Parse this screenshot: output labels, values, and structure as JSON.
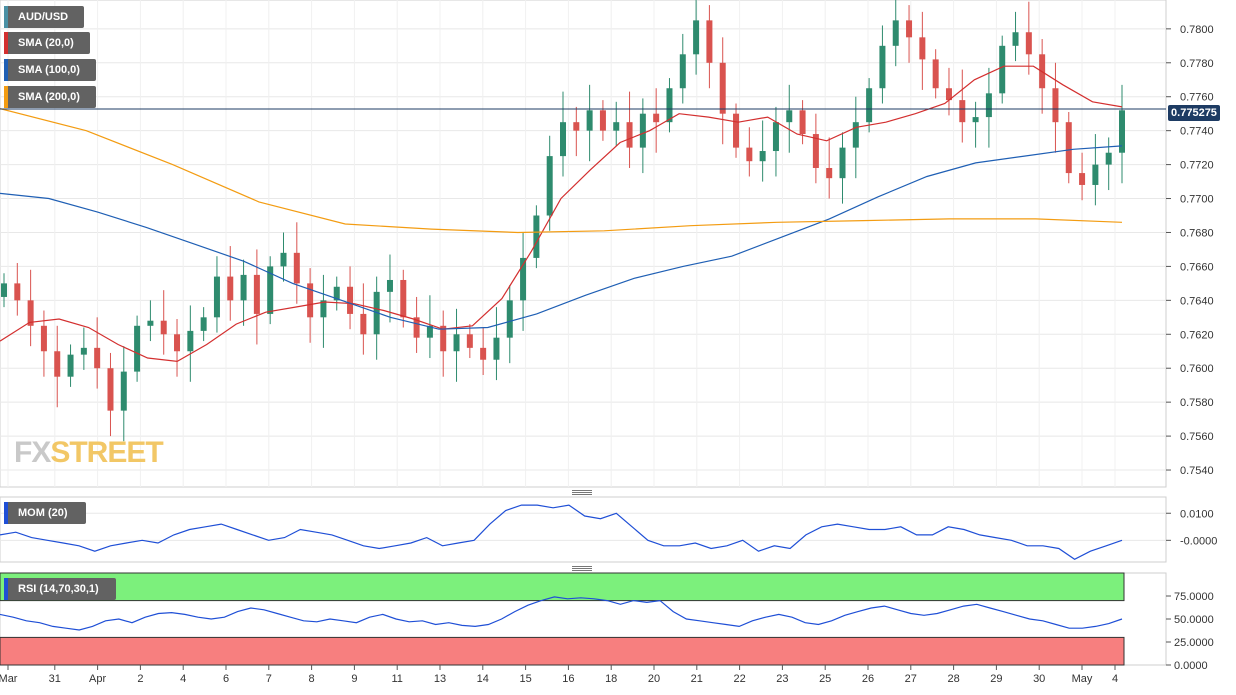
{
  "symbol": "AUD/USD",
  "legend": {
    "sma20": {
      "label": "SMA (20,0)",
      "color": "#d32f2f"
    },
    "sma100": {
      "label": "SMA (100,0)",
      "color": "#1f5fb4"
    },
    "sma200": {
      "label": "SMA (200,0)",
      "color": "#f39c12"
    }
  },
  "watermark": {
    "part1": "FX",
    "part2": "STREET"
  },
  "current_price_label": "0.775275",
  "mom_label": "MOM (20)",
  "rsi_label": "RSI (14,70,30,1)",
  "colors": {
    "up": "#2e8b6e",
    "down": "#d9534f",
    "grid": "#e8e8e8",
    "rsi_overbought": "#7cf07c",
    "rsi_oversold": "#f77f7f",
    "indicator_line": "#1f4fd6"
  },
  "chart_data": [
    {
      "type": "candlestick",
      "title": "AUD/USD",
      "ylim": [
        0.753,
        0.7817
      ],
      "y_ticks": [
        0.754,
        0.756,
        0.758,
        0.76,
        0.762,
        0.764,
        0.766,
        0.768,
        0.77,
        0.772,
        0.774,
        0.776,
        0.778,
        0.78
      ],
      "y_tick_labels": [
        "0.7540",
        "0.7560",
        "0.7580",
        "0.7600",
        "0.7620",
        "0.7640",
        "0.7660",
        "0.7680",
        "0.7700",
        "0.7720",
        "0.7740",
        "0.7760",
        "0.7780",
        "0.7800"
      ],
      "x_tick_labels": [
        "Mar",
        "31",
        "Apr",
        "2",
        "4",
        "6",
        "7",
        "8",
        "9",
        "11",
        "13",
        "14",
        "15",
        "16",
        "18",
        "20",
        "21",
        "22",
        "23",
        "25",
        "26",
        "27",
        "28",
        "29",
        "30",
        "May",
        "4"
      ],
      "current_price": 0.775275,
      "series": [
        {
          "name": "AUD/USD",
          "values": [
            0.765,
            0.764,
            0.7625,
            0.761,
            0.7595,
            0.7608,
            0.7612,
            0.76,
            0.7575,
            0.7598,
            0.7625,
            0.7628,
            0.762,
            0.761,
            0.7622,
            0.763,
            0.7654,
            0.764,
            0.7655,
            0.7632,
            0.766,
            0.7668,
            0.765,
            0.763,
            0.764,
            0.7648,
            0.7632,
            0.762,
            0.7645,
            0.7652,
            0.763,
            0.7618,
            0.7625,
            0.761,
            0.762,
            0.7612,
            0.7605,
            0.7618,
            0.764,
            0.7665,
            0.769,
            0.7725,
            0.7745,
            0.774,
            0.7752,
            0.774,
            0.7745,
            0.773,
            0.775,
            0.7745,
            0.7765,
            0.7785,
            0.7805,
            0.778,
            0.775,
            0.773,
            0.7722,
            0.7728,
            0.7745,
            0.7752,
            0.7738,
            0.7718,
            0.7712,
            0.773,
            0.7745,
            0.7765,
            0.779,
            0.7805,
            0.7795,
            0.7782,
            0.7765,
            0.7758,
            0.7745,
            0.7748,
            0.7762,
            0.779,
            0.7798,
            0.7785,
            0.7765,
            0.7745,
            0.7715,
            0.7708,
            0.772,
            0.7727,
            0.7752
          ]
        },
        {
          "name": "SMA (20,0)",
          "values": [
            0.7616,
            0.7627,
            0.7629,
            0.7624,
            0.7614,
            0.7606,
            0.7604,
            0.7614,
            0.7626,
            0.7633,
            0.7636,
            0.7639,
            0.7638,
            0.7634,
            0.7629,
            0.7623,
            0.7625,
            0.7641,
            0.7669,
            0.77,
            0.7717,
            0.7733,
            0.774,
            0.775,
            0.7748,
            0.7745,
            0.7748,
            0.7738,
            0.7734,
            0.7742,
            0.7745,
            0.775,
            0.7756,
            0.777,
            0.7778,
            0.7778,
            0.7767,
            0.7757,
            0.7754
          ]
        },
        {
          "name": "SMA (100,0)",
          "values": [
            0.7703,
            0.77,
            0.7692,
            0.7683,
            0.7673,
            0.7663,
            0.765,
            0.764,
            0.763,
            0.7623,
            0.7624,
            0.7632,
            0.7643,
            0.7653,
            0.766,
            0.7666,
            0.7677,
            0.7688,
            0.7701,
            0.7713,
            0.7721,
            0.7725,
            0.7729,
            0.7731
          ]
        },
        {
          "name": "SMA (200,0)",
          "values": [
            0.7753,
            0.774,
            0.772,
            0.7698,
            0.7685,
            0.7682,
            0.768,
            0.7681,
            0.7684,
            0.7686,
            0.7687,
            0.7688,
            0.7688,
            0.7686
          ]
        }
      ]
    },
    {
      "type": "line",
      "title": "MOM (20)",
      "y_tick_labels": [
        "0.0100",
        "-0.0000"
      ],
      "y_ticks": [
        0.01,
        0.0
      ],
      "ylim": [
        -0.008,
        0.016
      ],
      "series": [
        {
          "name": "MOM (20)",
          "values": [
            0.002,
            0.003,
            0.001,
            0.0,
            -0.001,
            -0.002,
            -0.004,
            -0.002,
            -0.001,
            0.0,
            -0.001,
            0.002,
            0.004,
            0.005,
            0.006,
            0.004,
            0.002,
            0.0,
            0.001,
            0.004,
            0.003,
            0.002,
            0.0,
            -0.002,
            -0.003,
            -0.002,
            -0.001,
            0.001,
            -0.002,
            -0.001,
            0.0,
            0.006,
            0.011,
            0.013,
            0.013,
            0.012,
            0.013,
            0.009,
            0.008,
            0.01,
            0.005,
            0.0,
            -0.002,
            -0.002,
            -0.001,
            -0.003,
            -0.002,
            0.0,
            -0.004,
            -0.002,
            -0.003,
            0.002,
            0.005,
            0.006,
            0.005,
            0.004,
            0.004,
            0.005,
            0.002,
            0.002,
            0.005,
            0.004,
            0.002,
            0.001,
            0.0,
            -0.002,
            -0.002,
            -0.003,
            -0.007,
            -0.004,
            -0.002,
            0.0
          ]
        }
      ]
    },
    {
      "type": "line",
      "title": "RSI (14,70,30,1)",
      "y_ticks": [
        75,
        50,
        25,
        0
      ],
      "y_tick_labels": [
        "75.0000",
        "50.0000",
        "25.0000",
        "0.0000"
      ],
      "ylim": [
        0,
        100
      ],
      "series": [
        {
          "name": "RSI (14,70,30,1)",
          "values": [
            55,
            52,
            48,
            46,
            42,
            40,
            38,
            42,
            48,
            50,
            46,
            52,
            56,
            57,
            55,
            52,
            50,
            52,
            58,
            62,
            60,
            56,
            52,
            48,
            47,
            50,
            48,
            46,
            52,
            55,
            50,
            47,
            48,
            44,
            46,
            43,
            42,
            44,
            50,
            58,
            65,
            70,
            74,
            72,
            73,
            72,
            70,
            66,
            70,
            68,
            70,
            58,
            50,
            48,
            46,
            44,
            42,
            48,
            52,
            55,
            52,
            46,
            44,
            48,
            54,
            58,
            62,
            64,
            60,
            56,
            54,
            56,
            60,
            64,
            66,
            62,
            58,
            54,
            50,
            48,
            44,
            40,
            40,
            42,
            45,
            50
          ]
        }
      ]
    }
  ]
}
